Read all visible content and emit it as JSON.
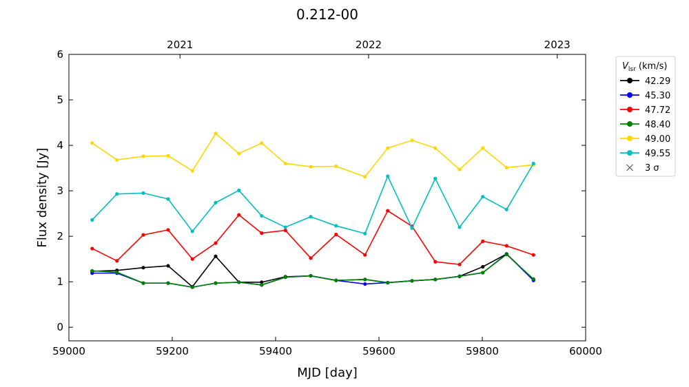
{
  "chart_data": {
    "type": "line",
    "title": "0.212-00",
    "xlabel": "MJD [day]",
    "ylabel": "Flux density [Jy]",
    "xlim": [
      59000,
      60000
    ],
    "ylim": [
      -0.3,
      6
    ],
    "xticks": [
      59000,
      59200,
      59400,
      59600,
      59800,
      60000
    ],
    "yticks": [
      0,
      1,
      2,
      3,
      4,
      5,
      6
    ],
    "top_axis": [
      {
        "label": "2021",
        "mjd": 59215
      },
      {
        "label": "2022",
        "mjd": 59580
      },
      {
        "label": "2023",
        "mjd": 59945
      }
    ],
    "legend": {
      "title_main": "V",
      "title_sub": "lsr",
      "title_unit": " (km/s)",
      "placement": "outside-right",
      "sigma_label": "3 σ"
    },
    "x": [
      59045,
      59093,
      59144,
      59192,
      59239,
      59284,
      59329,
      59373,
      59419,
      59468,
      59517,
      59573,
      59617,
      59664,
      59709,
      59756,
      59801,
      59847,
      59899
    ],
    "series": [
      {
        "name": "42.29",
        "color": "#000000",
        "values": [
          1.23,
          1.25,
          1.31,
          1.35,
          0.89,
          1.56,
          0.99,
          0.99,
          1.11,
          1.13,
          1.03,
          1.05,
          0.98,
          1.02,
          1.05,
          1.12,
          1.33,
          1.61,
          1.05
        ]
      },
      {
        "name": "45.30",
        "color": "#0000ff",
        "values": [
          1.19,
          1.19,
          0.97,
          0.97,
          0.88,
          0.97,
          0.99,
          0.93,
          1.1,
          1.13,
          1.03,
          0.95,
          0.98,
          1.02,
          1.05,
          1.12,
          1.2,
          1.61,
          1.03
        ]
      },
      {
        "name": "47.72",
        "color": "#ff0000",
        "values": [
          1.73,
          1.46,
          2.03,
          2.14,
          1.5,
          1.85,
          2.47,
          2.07,
          2.13,
          1.52,
          2.04,
          1.59,
          2.56,
          2.22,
          1.44,
          1.38,
          1.89,
          1.79,
          1.59
        ]
      },
      {
        "name": "48.40",
        "color": "#008000",
        "values": [
          1.24,
          1.21,
          0.97,
          0.97,
          0.88,
          0.97,
          0.99,
          0.93,
          1.1,
          1.13,
          1.03,
          1.05,
          0.98,
          1.02,
          1.05,
          1.12,
          1.2,
          1.6,
          1.06
        ]
      },
      {
        "name": "49.00",
        "color": "#ffd700",
        "values": [
          4.05,
          3.68,
          3.76,
          3.77,
          3.44,
          4.26,
          3.82,
          4.05,
          3.6,
          3.53,
          3.54,
          3.31,
          3.94,
          4.11,
          3.94,
          3.47,
          3.94,
          3.51,
          3.57
        ]
      },
      {
        "name": "49.55",
        "color": "#00bfbf",
        "values": [
          2.36,
          2.93,
          2.95,
          2.82,
          2.11,
          2.74,
          3.01,
          2.45,
          2.2,
          2.43,
          2.23,
          2.06,
          3.32,
          2.18,
          3.27,
          2.2,
          2.87,
          2.59,
          3.6
        ]
      }
    ]
  }
}
